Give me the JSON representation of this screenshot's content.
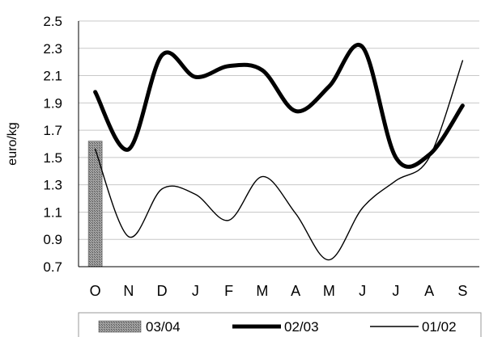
{
  "chart_data": {
    "type": "line",
    "ylabel": "euro/kg",
    "ylim": [
      0.7,
      2.5
    ],
    "yticks": [
      "0.7",
      "0.9",
      "1.1",
      "1.3",
      "1.5",
      "1.7",
      "1.9",
      "2.1",
      "2.3",
      "2.5"
    ],
    "categories": [
      "O",
      "N",
      "D",
      "J",
      "F",
      "M",
      "A",
      "M",
      "J",
      "J",
      "A",
      "S"
    ],
    "grid": true,
    "legend_position": "bottom",
    "series": [
      {
        "name": "03/04",
        "kind": "bar",
        "color": "#8c8c8c",
        "values": [
          1.62,
          null,
          null,
          null,
          null,
          null,
          null,
          null,
          null,
          null,
          null,
          null
        ]
      },
      {
        "name": "02/03",
        "kind": "line",
        "color": "#000000",
        "weight": "thick",
        "values": [
          1.98,
          1.56,
          2.25,
          2.09,
          2.17,
          2.14,
          1.84,
          2.02,
          2.31,
          1.5,
          1.52,
          1.88
        ]
      },
      {
        "name": "01/02",
        "kind": "line",
        "color": "#000000",
        "weight": "thin",
        "values": [
          1.56,
          0.92,
          1.27,
          1.23,
          1.04,
          1.36,
          1.09,
          0.75,
          1.13,
          1.33,
          1.5,
          2.21
        ]
      }
    ]
  }
}
